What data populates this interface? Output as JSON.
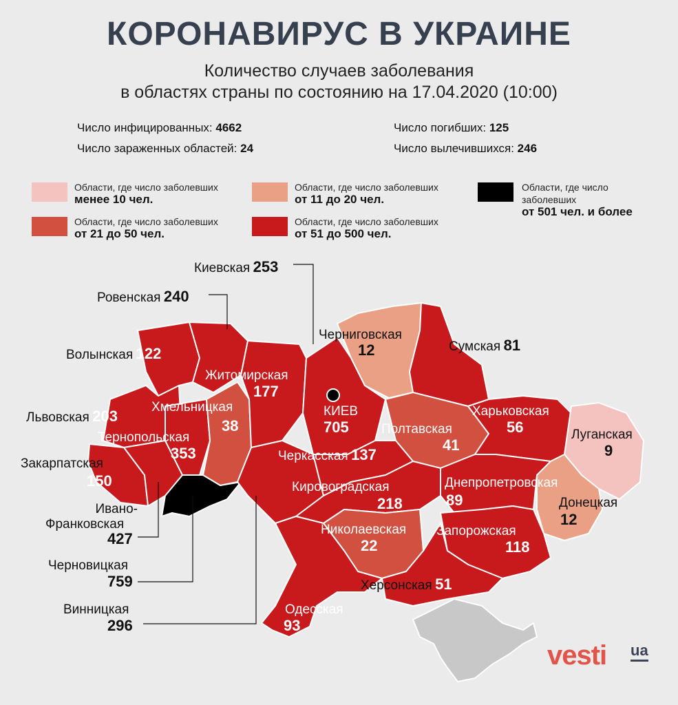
{
  "header": {
    "title": "КОРОНАВИРУС В УКРАИНЕ",
    "subtitle_line1": "Количество случаев заболевания",
    "subtitle_line2": "в областях страны по состоянию на 17.04.2020 (10:00)"
  },
  "stats": {
    "infected_label": "Число инфицированных:",
    "infected_value": "4662",
    "regions_label": "Число зараженных областей:",
    "regions_value": "24",
    "deaths_label": "Число погибших:",
    "deaths_value": "125",
    "recovered_label": "Число вылечившихся:",
    "recovered_value": "246"
  },
  "colors": {
    "lt10": "#f4c2bf",
    "r11_20": "#e9a084",
    "r21_50": "#d2503f",
    "r51_500": "#c81a1c",
    "gt500": "#000000",
    "crimea": "#c8c8c8"
  },
  "legend": [
    {
      "text": "Области, где число заболевших",
      "bold": "менее 10 чел."
    },
    {
      "text": "Области, где число заболевших",
      "bold": "от 11 до 20 чел."
    },
    {
      "text": "Области, где число заболевших",
      "bold": "от 21 до 50 чел."
    },
    {
      "text": "Области, где число заболевших",
      "bold": "от 51 до 500 чел."
    },
    {
      "text1": "Области, где число",
      "text2": "заболевших",
      "bold": "от 501 чел. и более"
    }
  ],
  "regions": {
    "kiev_obl": {
      "name": "Киевская",
      "value": "253"
    },
    "rovno": {
      "name": "Ровенская",
      "value": "240"
    },
    "volyn": {
      "name": "Волынская",
      "value": "122"
    },
    "lviv": {
      "name": "Львовская",
      "value": "203"
    },
    "zakarpat": {
      "name": "Закарпатская",
      "value": "150"
    },
    "ivano_1": "Ивано-",
    "ivano_2": "Франковская",
    "ivano_value": "427",
    "chernovtsy": {
      "name": "Черновицкая",
      "value": "759"
    },
    "vinnitsa": {
      "name": "Винницкая",
      "value": "296"
    },
    "zhitomir": {
      "name": "Житомирская",
      "value": "177"
    },
    "khmelnitsky": {
      "name": "Хмельницкая",
      "value": "38"
    },
    "ternopil": {
      "name": "Тернопольская",
      "value": "353"
    },
    "chernigov": {
      "name": "Черниговская",
      "value": "12"
    },
    "sumy": {
      "name": "Сумская",
      "value": "81"
    },
    "kiev": {
      "name": "КИЕВ",
      "value": "705"
    },
    "poltava": {
      "name": "Полтавская",
      "value": "41"
    },
    "kharkov": {
      "name": "Харьковская",
      "value": "56"
    },
    "lugansk": {
      "name": "Луганская",
      "value": "9"
    },
    "cherkassy": {
      "name": "Черкасская",
      "value": "137"
    },
    "kirovograd": {
      "name": "Кировоградская",
      "value": "218"
    },
    "dnepr": {
      "name": "Днепропетровская",
      "value": "89"
    },
    "donetsk": {
      "name": "Донецкая",
      "value": "12"
    },
    "nikolaev": {
      "name": "Николаевская",
      "value": "22"
    },
    "zaporozhye": {
      "name": "Запорожская",
      "value": "118"
    },
    "kherson": {
      "name": "Херсонская",
      "value": "51"
    },
    "odessa": {
      "name": "Одесская",
      "value": "93"
    }
  },
  "brand": {
    "name": "vesti",
    "suffix": "ua"
  }
}
